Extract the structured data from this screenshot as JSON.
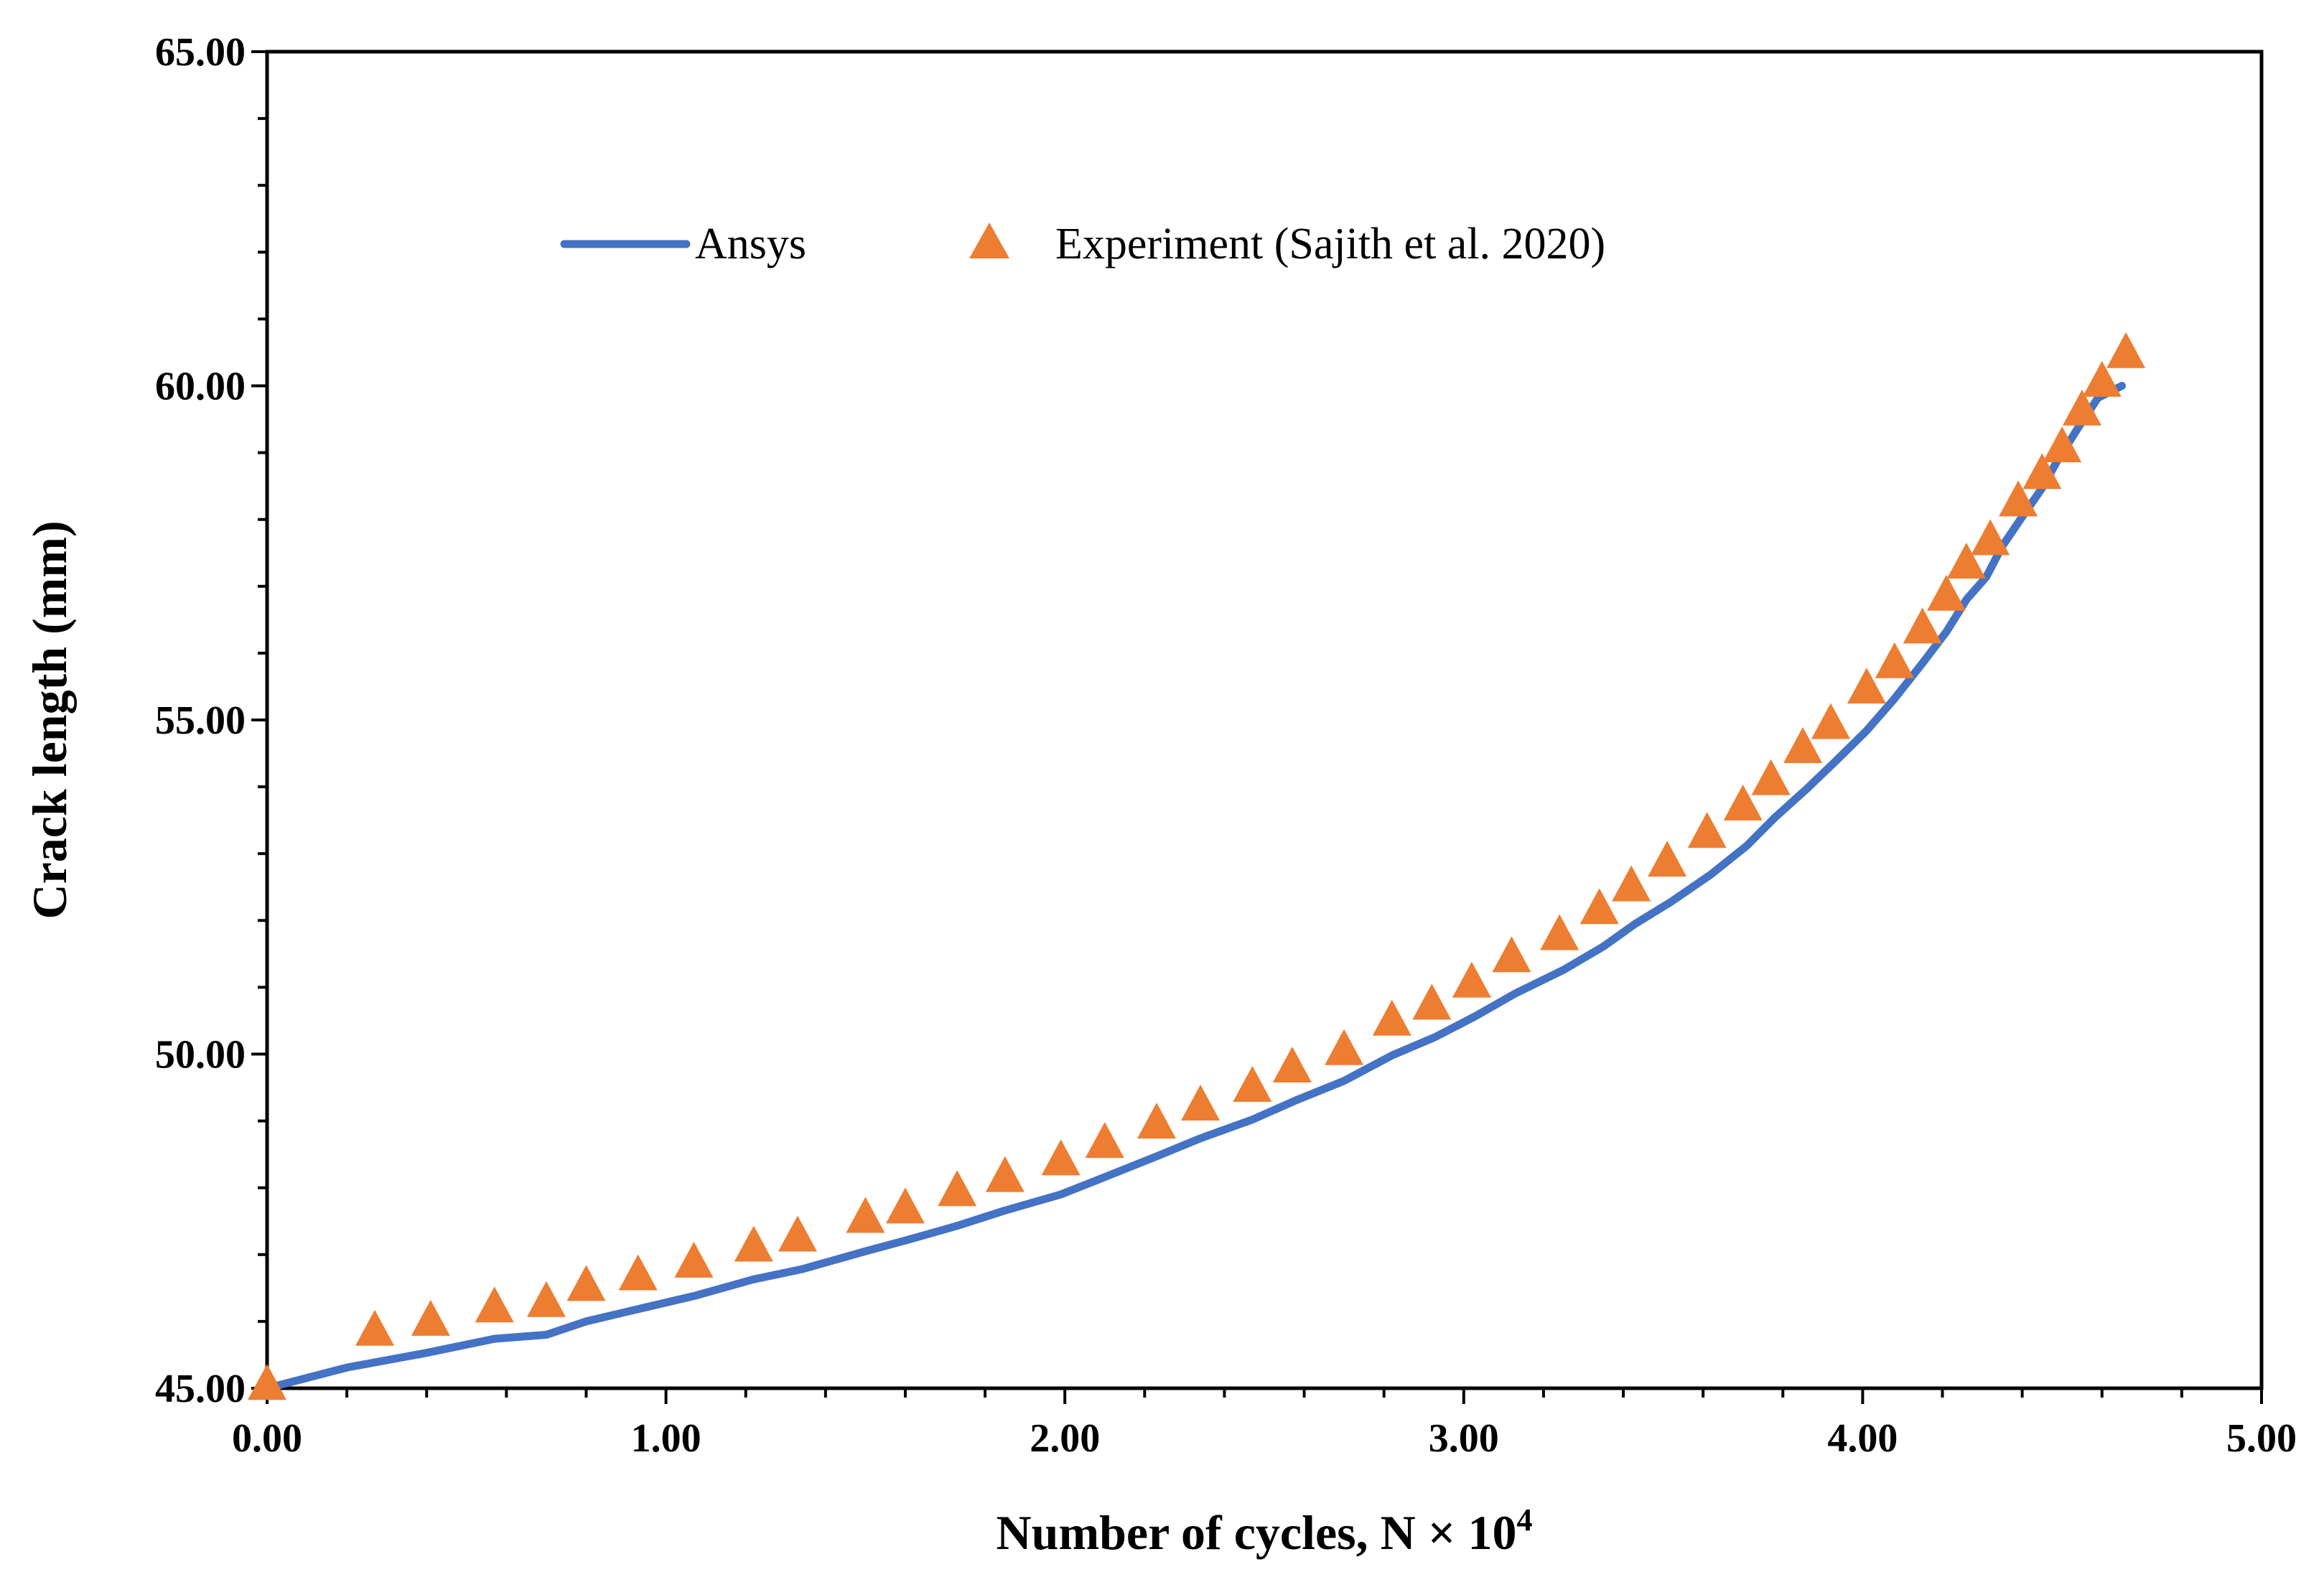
{
  "chart_data": {
    "type": "line",
    "title": "",
    "xlabel": "Number of cycles, N ×  10",
    "xlabel_exponent": "4",
    "ylabel": "Crack length (mm)",
    "xlim": [
      0,
      5
    ],
    "ylim": [
      45,
      65
    ],
    "x_ticks": [
      "0.00",
      "1.00",
      "2.00",
      "3.00",
      "4.00",
      "5.00"
    ],
    "y_ticks": [
      "45.00",
      "50.00",
      "55.00",
      "60.00",
      "65.00"
    ],
    "x_tick_values": [
      0,
      1,
      2,
      3,
      4,
      5
    ],
    "y_tick_values": [
      45,
      50,
      55,
      60,
      65
    ],
    "x_minor_step": 0.2,
    "y_minor_step": 1,
    "grid": false,
    "legend_position": "top-center",
    "series": [
      {
        "name": "Ansys",
        "kind": "line",
        "color": "#4472C4",
        "x": [
          0.0,
          0.2,
          0.4,
          0.57,
          0.7,
          0.8,
          0.92,
          1.07,
          1.22,
          1.34,
          1.5,
          1.6,
          1.73,
          1.85,
          1.99,
          2.1,
          2.23,
          2.34,
          2.47,
          2.58,
          2.7,
          2.82,
          2.93,
          3.03,
          3.13,
          3.25,
          3.35,
          3.43,
          3.52,
          3.62,
          3.71,
          3.78,
          3.86,
          3.93,
          4.01,
          4.08,
          4.15,
          4.21,
          4.26,
          4.31,
          4.35,
          4.4,
          4.45,
          4.49,
          4.54,
          4.59,
          4.65
        ],
        "y": [
          45.0,
          45.31,
          45.53,
          45.74,
          45.8,
          46.0,
          46.17,
          46.38,
          46.63,
          46.78,
          47.05,
          47.21,
          47.43,
          47.66,
          47.9,
          48.16,
          48.47,
          48.74,
          49.02,
          49.31,
          49.6,
          49.98,
          50.26,
          50.57,
          50.91,
          51.26,
          51.61,
          51.95,
          52.28,
          52.69,
          53.12,
          53.54,
          53.97,
          54.37,
          54.84,
          55.32,
          55.85,
          56.32,
          56.8,
          57.14,
          57.6,
          58.04,
          58.47,
          58.9,
          59.37,
          59.82,
          60.0
        ]
      },
      {
        "name": "Experiment (Sajith et al. 2020)",
        "kind": "marker",
        "marker": "triangle",
        "color": "#ED7D31",
        "x": [
          0.0,
          0.27,
          0.41,
          0.57,
          0.7,
          0.8,
          0.93,
          1.07,
          1.22,
          1.33,
          1.5,
          1.6,
          1.73,
          1.85,
          1.99,
          2.1,
          2.23,
          2.34,
          2.47,
          2.57,
          2.7,
          2.82,
          2.92,
          3.02,
          3.12,
          3.24,
          3.34,
          3.42,
          3.51,
          3.61,
          3.7,
          3.77,
          3.85,
          3.92,
          4.01,
          4.08,
          4.15,
          4.21,
          4.26,
          4.32,
          4.39,
          4.45,
          4.5,
          4.55,
          4.6,
          4.66
        ],
        "y": [
          45.03,
          45.84,
          45.99,
          46.19,
          46.27,
          46.51,
          46.67,
          46.86,
          47.1,
          47.25,
          47.53,
          47.67,
          47.93,
          48.14,
          48.39,
          48.65,
          48.94,
          49.21,
          49.49,
          49.78,
          50.04,
          50.48,
          50.72,
          51.05,
          51.43,
          51.76,
          52.15,
          52.49,
          52.86,
          53.29,
          53.7,
          54.08,
          54.56,
          54.92,
          55.45,
          55.83,
          56.35,
          56.84,
          57.32,
          57.67,
          58.25,
          58.66,
          59.06,
          59.61,
          60.04,
          60.47
        ]
      }
    ]
  }
}
